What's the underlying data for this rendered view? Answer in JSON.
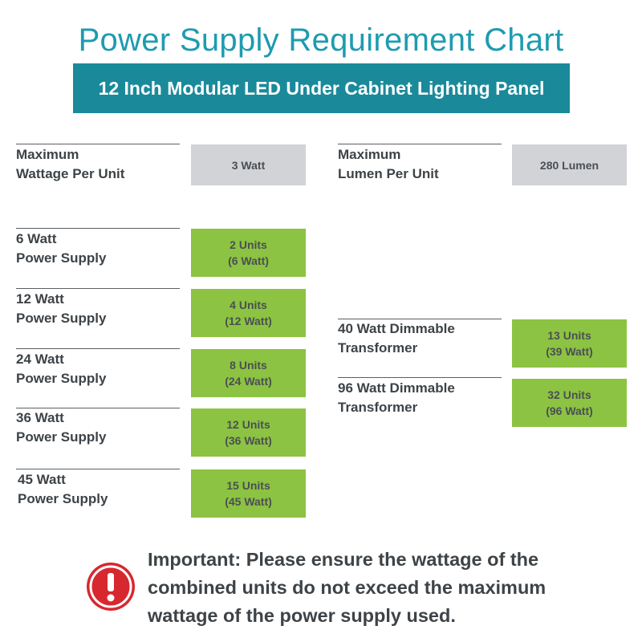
{
  "title": "Power Supply Requirement Chart",
  "subtitle": "12 Inch Modular LED Under Cabinet Lighting Panel",
  "specs": {
    "wattage": {
      "label_lines": [
        "Maximum",
        "Wattage Per Unit"
      ],
      "value": "3 Watt"
    },
    "lumen": {
      "label_lines": [
        "Maximum",
        "Lumen Per Unit"
      ],
      "value": "280 Lumen"
    }
  },
  "power_supplies": [
    {
      "label_lines": [
        "6 Watt",
        "Power Supply"
      ],
      "units": "2 Units",
      "watt": "(6 Watt)"
    },
    {
      "label_lines": [
        "12 Watt",
        "Power Supply"
      ],
      "units": "4 Units",
      "watt": "(12 Watt)"
    },
    {
      "label_lines": [
        "24 Watt",
        "Power Supply"
      ],
      "units": "8 Units",
      "watt": "(24 Watt)"
    },
    {
      "label_lines": [
        "36 Watt",
        "Power Supply"
      ],
      "units": "12 Units",
      "watt": "(36 Watt)"
    },
    {
      "label_lines": [
        "45 Watt",
        "Power Supply"
      ],
      "units": "15 Units",
      "watt": "(45 Watt)"
    }
  ],
  "transformers": [
    {
      "label_lines": [
        "40 Watt Dimmable",
        "Transformer"
      ],
      "units": "13 Units",
      "watt": "(39 Watt)"
    },
    {
      "label_lines": [
        "96 Watt Dimmable",
        "Transformer"
      ],
      "units": "32 Units",
      "watt": "(96 Watt)"
    }
  ],
  "important_lines": [
    "Important: Please ensure the wattage of the",
    "combined units do not exceed the maximum",
    "wattage of the power supply used."
  ],
  "colors": {
    "title": "#1e9bb0",
    "banner": "#1a8a9b",
    "green_box": "#8cc342",
    "gray_box": "#d2d3d7",
    "alert": "#d7282f"
  }
}
